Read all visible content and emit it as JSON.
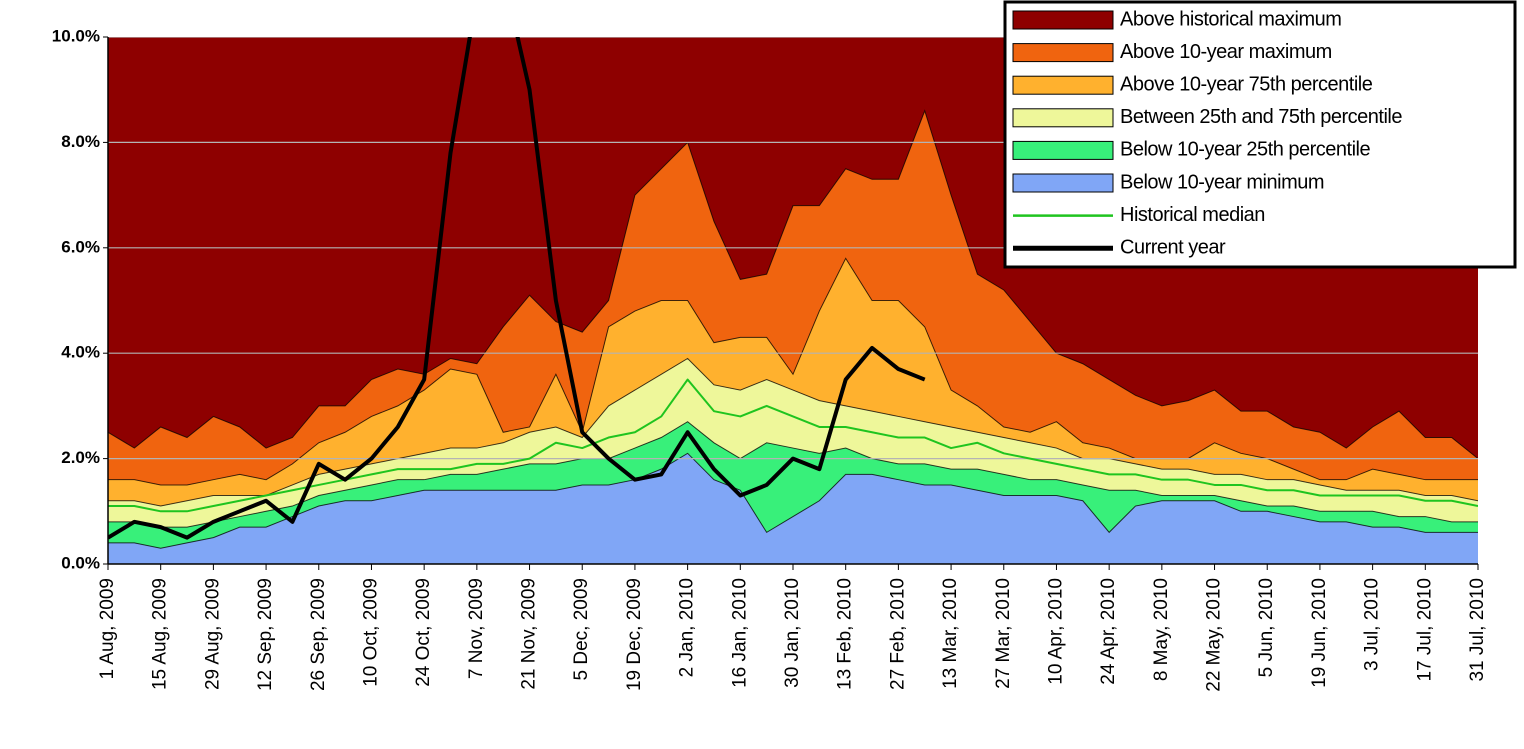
{
  "chart_data": {
    "type": "area",
    "x": [
      "1 Aug, 2009",
      null,
      "15 Aug, 2009",
      null,
      "29 Aug, 2009",
      null,
      "12 Sep, 2009",
      null,
      "26 Sep, 2009",
      null,
      "10 Oct, 2009",
      null,
      "24 Oct, 2009",
      null,
      "7 Nov, 2009",
      null,
      "21 Nov, 2009",
      null,
      "5 Dec, 2009",
      null,
      "19 Dec, 2009",
      null,
      "2 Jan, 2010",
      null,
      "16 Jan, 2010",
      null,
      "30 Jan, 2010",
      null,
      "13 Feb, 2010",
      null,
      "27 Feb, 2010",
      null,
      "13 Mar, 2010",
      null,
      "27 Mar, 2010",
      null,
      "10 Apr, 2010",
      null,
      "24 Apr, 2010",
      null,
      "8 May, 2010",
      null,
      "22 May, 2010",
      null,
      "5 Jun, 2010",
      null,
      "19 Jun, 2010",
      null,
      "3 Jul, 2010",
      null,
      "17 Jul, 2010",
      null,
      "31 Jul, 2010"
    ],
    "ylim": [
      0,
      10
    ],
    "yticks": [
      {
        "value": 0,
        "label": "0.0%"
      },
      {
        "value": 2,
        "label": "2.0%"
      },
      {
        "value": 4,
        "label": "4.0%"
      },
      {
        "value": 6,
        "label": "6.0%"
      },
      {
        "value": 8,
        "label": "8.0%"
      },
      {
        "value": 10,
        "label": "10.0%"
      }
    ],
    "grid": true,
    "legend": "upper right",
    "series": [
      {
        "name": "Above historical maximum",
        "type": "area",
        "color": "#8e0000"
      },
      {
        "name": "Above 10-year maximum",
        "type": "area",
        "color": "#f0640f",
        "values": [
          0.9,
          0.6,
          1.1,
          0.9,
          1.2,
          0.9,
          0.6,
          0.5,
          0.7,
          0.5,
          0.7,
          0.7,
          0.3,
          0.2,
          0.2,
          2.0,
          2.5,
          1.0,
          1.9,
          0.5,
          2.2,
          2.5,
          3.0,
          2.3,
          1.1,
          1.2,
          3.2,
          2.0,
          1.7,
          2.3,
          2.3,
          4.1,
          3.7,
          2.5,
          2.6,
          2.1,
          1.3,
          1.5,
          1.3,
          1.2,
          1.0,
          1.1,
          1.0,
          0.8,
          0.9,
          0.8,
          0.9,
          0.6,
          0.8,
          1.2,
          0.8,
          0.8,
          0.4
        ]
      },
      {
        "name": "Above 10-year 75th percentile",
        "type": "area",
        "color": "#ffb12e",
        "values": [
          0.4,
          0.4,
          0.4,
          0.3,
          0.3,
          0.4,
          0.3,
          0.4,
          0.6,
          0.7,
          0.9,
          1.0,
          1.2,
          1.5,
          1.4,
          0.2,
          0.1,
          1.0,
          0.1,
          1.5,
          1.5,
          1.4,
          1.1,
          0.8,
          1.0,
          0.8,
          0.3,
          1.7,
          2.8,
          2.1,
          2.2,
          1.8,
          0.7,
          0.5,
          0.2,
          0.2,
          0.5,
          0.3,
          0.2,
          0.1,
          0.2,
          0.2,
          0.6,
          0.4,
          0.4,
          0.2,
          0.1,
          0.2,
          0.4,
          0.3,
          0.3,
          0.3,
          0.4
        ]
      },
      {
        "name": "Between 25th and 75th percentile",
        "type": "area",
        "color": "#eef79a",
        "values": [
          0.4,
          0.4,
          0.4,
          0.5,
          0.5,
          0.4,
          0.3,
          0.4,
          0.4,
          0.4,
          0.4,
          0.4,
          0.5,
          0.5,
          0.5,
          0.5,
          0.6,
          0.7,
          0.4,
          1.0,
          1.1,
          1.2,
          1.2,
          1.1,
          1.3,
          1.2,
          1.1,
          1.0,
          0.8,
          0.9,
          0.9,
          0.8,
          0.8,
          0.7,
          0.7,
          0.7,
          0.6,
          0.5,
          0.6,
          0.5,
          0.5,
          0.5,
          0.4,
          0.5,
          0.5,
          0.5,
          0.5,
          0.4,
          0.4,
          0.5,
          0.4,
          0.5,
          0.4
        ]
      },
      {
        "name": "Below 10-year 25th percentile",
        "type": "area",
        "color": "#38f07a",
        "values": [
          0.4,
          0.4,
          0.4,
          0.3,
          0.3,
          0.2,
          0.3,
          0.2,
          0.2,
          0.2,
          0.3,
          0.3,
          0.2,
          0.3,
          0.3,
          0.4,
          0.5,
          0.5,
          0.5,
          0.5,
          0.6,
          0.6,
          0.6,
          0.7,
          0.6,
          1.7,
          1.3,
          0.9,
          0.5,
          0.3,
          0.3,
          0.4,
          0.3,
          0.4,
          0.4,
          0.3,
          0.3,
          0.3,
          0.8,
          0.3,
          0.1,
          0.1,
          0.1,
          0.2,
          0.1,
          0.2,
          0.2,
          0.2,
          0.3,
          0.2,
          0.3,
          0.2,
          0.2
        ]
      },
      {
        "name": "Below 10-year minimum",
        "type": "area",
        "color": "#80a6f6",
        "values": [
          0.4,
          0.4,
          0.3,
          0.4,
          0.5,
          0.7,
          0.7,
          0.9,
          1.1,
          1.2,
          1.2,
          1.3,
          1.4,
          1.4,
          1.4,
          1.4,
          1.4,
          1.4,
          1.5,
          1.5,
          1.6,
          1.8,
          2.1,
          1.6,
          1.4,
          0.6,
          0.9,
          1.2,
          1.7,
          1.7,
          1.6,
          1.5,
          1.5,
          1.4,
          1.3,
          1.3,
          1.3,
          1.2,
          0.6,
          1.1,
          1.2,
          1.2,
          1.2,
          1.0,
          1.0,
          0.9,
          0.8,
          0.8,
          0.7,
          0.7,
          0.6,
          0.6,
          0.6
        ]
      },
      {
        "name": "Historical median",
        "type": "line",
        "color": "#1fc41f",
        "values": [
          1.1,
          1.1,
          1.0,
          1.0,
          1.1,
          1.2,
          1.3,
          1.4,
          1.5,
          1.6,
          1.7,
          1.8,
          1.8,
          1.8,
          1.9,
          1.9,
          2.0,
          2.3,
          2.2,
          2.4,
          2.5,
          2.8,
          3.5,
          2.9,
          2.8,
          3.0,
          2.8,
          2.6,
          2.6,
          2.5,
          2.4,
          2.4,
          2.2,
          2.3,
          2.1,
          2.0,
          1.9,
          1.8,
          1.7,
          1.7,
          1.6,
          1.6,
          1.5,
          1.5,
          1.4,
          1.4,
          1.3,
          1.3,
          1.3,
          1.3,
          1.2,
          1.2,
          1.1
        ]
      },
      {
        "name": "Current year",
        "type": "line",
        "color": "#000000",
        "values": [
          0.5,
          0.8,
          0.7,
          0.5,
          0.8,
          1.0,
          1.2,
          0.8,
          1.9,
          1.6,
          2.0,
          2.6,
          3.5,
          7.8,
          10.8,
          11.2,
          9.0,
          5.0,
          2.5,
          2.0,
          1.6,
          1.7,
          2.5,
          1.8,
          1.3,
          1.5,
          2.0,
          1.8,
          3.5,
          4.1,
          3.7,
          3.5,
          null,
          null,
          null,
          null,
          null,
          null,
          null,
          null,
          null,
          null,
          null,
          null,
          null,
          null,
          null,
          null,
          null,
          null,
          null,
          null,
          null
        ]
      }
    ]
  }
}
